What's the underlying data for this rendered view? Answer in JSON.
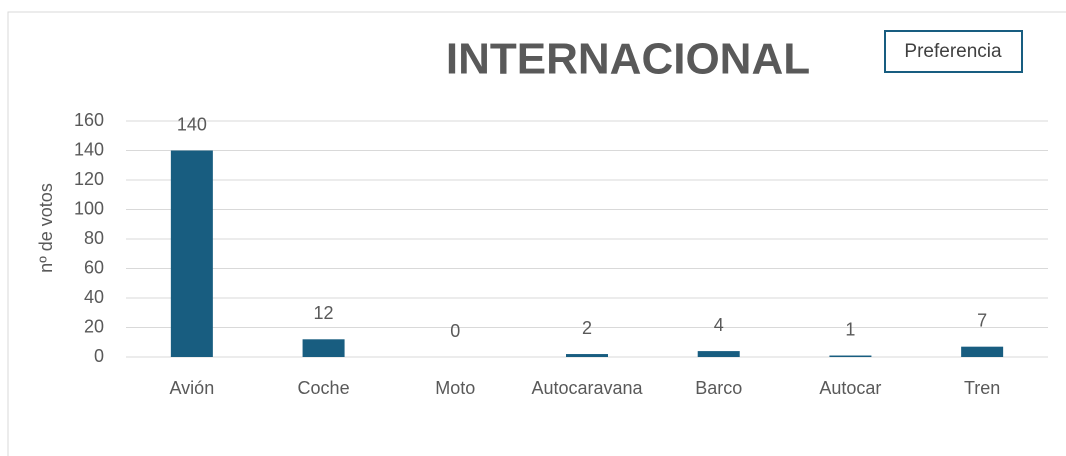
{
  "chart_data": {
    "type": "bar",
    "title": "INTERNACIONAL",
    "y_label": "nº de votos",
    "categories": [
      "Avión",
      "Coche",
      "Moto",
      "Autocaravana",
      "Barco",
      "Autocar",
      "Tren"
    ],
    "series": [
      {
        "name": "Preferencia",
        "color": "#185d80",
        "values": [
          140,
          12,
          0,
          2,
          4,
          1,
          7
        ]
      }
    ],
    "ylim": [
      0,
      160
    ],
    "yticks": [
      0,
      20,
      40,
      60,
      80,
      100,
      120,
      140,
      160
    ],
    "grid": true,
    "legend": "top-right"
  }
}
